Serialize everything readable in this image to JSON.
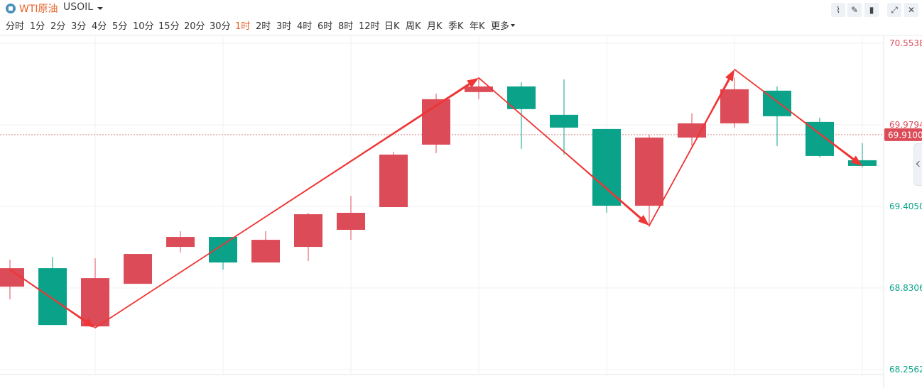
{
  "header": {
    "symbol_name": "WTI原油",
    "symbol_code": "USOIL",
    "tools": [
      {
        "name": "line-tool-icon",
        "glyph": "⌇"
      },
      {
        "name": "pen-icon",
        "glyph": "✎"
      },
      {
        "name": "candle-type-icon",
        "glyph": "▮"
      },
      {
        "name": "expand-icon",
        "glyph": "⤢"
      },
      {
        "name": "close-icon",
        "glyph": "✕"
      }
    ]
  },
  "periods": [
    "分时",
    "1分",
    "2分",
    "3分",
    "4分",
    "5分",
    "10分",
    "15分",
    "20分",
    "30分",
    "1时",
    "2时",
    "3时",
    "4时",
    "6时",
    "8时",
    "12时",
    "日K",
    "周K",
    "月K",
    "季K",
    "年K",
    "更多"
  ],
  "active_period": "1时",
  "colors": {
    "up": "#dc4c58",
    "down": "#0aa389",
    "arrow": "#ef3535",
    "grid": "#f0f0f0"
  },
  "chart_data": {
    "type": "candlestick",
    "ylim": [
      68.2562,
      70.5538
    ],
    "y_ticks": [
      "70.5538",
      "69.9794",
      "69.4050",
      "68.8306",
      "68.2562"
    ],
    "current_price": "69.9100",
    "candles": [
      {
        "open": 68.84,
        "close": 68.97,
        "high": 69.03,
        "low": 68.75,
        "dir": "up"
      },
      {
        "open": 68.97,
        "close": 68.57,
        "high": 69.05,
        "low": 68.57,
        "dir": "down"
      },
      {
        "open": 68.56,
        "close": 68.9,
        "high": 69.04,
        "low": 68.56,
        "dir": "up"
      },
      {
        "open": 68.86,
        "close": 69.07,
        "high": 69.07,
        "low": 68.86,
        "dir": "up"
      },
      {
        "open": 69.12,
        "close": 69.19,
        "high": 69.23,
        "low": 69.08,
        "dir": "up"
      },
      {
        "open": 69.19,
        "close": 69.01,
        "high": 69.19,
        "low": 68.96,
        "dir": "down"
      },
      {
        "open": 69.01,
        "close": 69.17,
        "high": 69.23,
        "low": 69.01,
        "dir": "up"
      },
      {
        "open": 69.12,
        "close": 69.35,
        "high": 69.36,
        "low": 69.02,
        "dir": "up"
      },
      {
        "open": 69.24,
        "close": 69.36,
        "high": 69.48,
        "low": 69.17,
        "dir": "up"
      },
      {
        "open": 69.4,
        "close": 69.77,
        "high": 69.79,
        "low": 69.4,
        "dir": "up"
      },
      {
        "open": 69.84,
        "close": 70.16,
        "high": 70.2,
        "low": 69.78,
        "dir": "up"
      },
      {
        "open": 70.21,
        "close": 70.25,
        "high": 70.31,
        "low": 70.16,
        "dir": "up"
      },
      {
        "open": 70.25,
        "close": 70.09,
        "high": 70.28,
        "low": 69.81,
        "dir": "down"
      },
      {
        "open": 70.05,
        "close": 69.96,
        "high": 70.3,
        "low": 69.77,
        "dir": "down"
      },
      {
        "open": 69.95,
        "close": 69.41,
        "high": 69.95,
        "low": 69.36,
        "dir": "down"
      },
      {
        "open": 69.41,
        "close": 69.89,
        "high": 69.91,
        "low": 69.26,
        "dir": "up"
      },
      {
        "open": 69.89,
        "close": 69.99,
        "high": 70.06,
        "low": 69.83,
        "dir": "up"
      },
      {
        "open": 69.99,
        "close": 70.23,
        "high": 70.31,
        "low": 69.96,
        "dir": "up"
      },
      {
        "open": 70.22,
        "close": 70.04,
        "high": 70.25,
        "low": 69.83,
        "dir": "down"
      },
      {
        "open": 70.0,
        "close": 69.76,
        "high": 70.03,
        "low": 69.75,
        "dir": "down"
      },
      {
        "open": 69.73,
        "close": 69.69,
        "high": 69.85,
        "low": 69.68,
        "dir": "down"
      }
    ],
    "annotations": {
      "arrows": [
        {
          "from": [
            0,
            68.96
          ],
          "to": [
            2,
            68.55
          ]
        },
        {
          "from": [
            2,
            68.55
          ],
          "to": [
            11,
            70.31
          ]
        },
        {
          "from": [
            11,
            70.31
          ],
          "to": [
            15,
            69.27
          ]
        },
        {
          "from": [
            15,
            69.27
          ],
          "to": [
            17,
            70.37
          ]
        },
        {
          "from": [
            17,
            70.37
          ],
          "to": [
            20,
            69.69
          ]
        }
      ]
    }
  }
}
